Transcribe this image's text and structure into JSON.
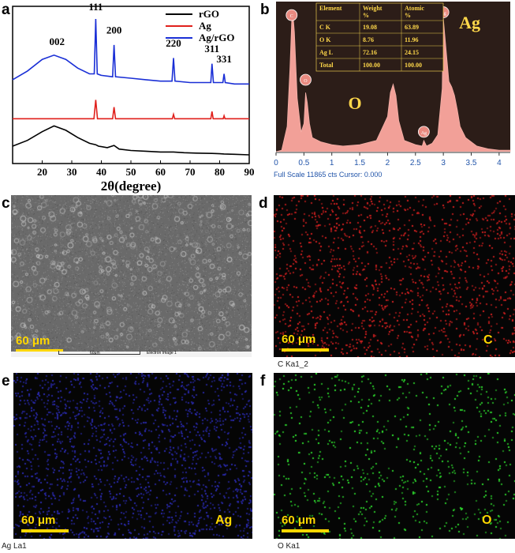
{
  "panels": {
    "a": "a",
    "b": "b",
    "c": "c",
    "d": "d",
    "e": "e",
    "f": "f"
  },
  "chart_data": [
    {
      "type": "line",
      "panel": "a",
      "xlabel": "2θ(degree)",
      "ylabel": "",
      "xlim": [
        10,
        90
      ],
      "xticks": [
        20,
        30,
        40,
        50,
        60,
        70,
        80,
        90
      ],
      "legend_position": "top-right",
      "series": [
        {
          "name": "rGO",
          "color": "#000000",
          "x": [
            10,
            15,
            20,
            24,
            28,
            32,
            36,
            38.1,
            39,
            42,
            44.3,
            46,
            50,
            55,
            60,
            64.4,
            68,
            72,
            77.4,
            80,
            81.5,
            85,
            90
          ],
          "y": [
            0.12,
            0.16,
            0.22,
            0.26,
            0.23,
            0.18,
            0.14,
            0.13,
            0.12,
            0.11,
            0.125,
            0.1,
            0.09,
            0.085,
            0.08,
            0.08,
            0.075,
            0.072,
            0.07,
            0.068,
            0.066,
            0.064,
            0.06
          ]
        },
        {
          "name": "Ag",
          "color": "#e0201c",
          "x": [
            10,
            20,
            30,
            37.5,
            38.1,
            38.7,
            43.8,
            44.3,
            44.8,
            64,
            64.4,
            64.8,
            77,
            77.4,
            77.8,
            81.2,
            81.5,
            81.8,
            90
          ],
          "y": [
            0.31,
            0.31,
            0.31,
            0.31,
            0.44,
            0.31,
            0.31,
            0.39,
            0.31,
            0.31,
            0.34,
            0.31,
            0.31,
            0.36,
            0.31,
            0.31,
            0.33,
            0.31,
            0.31
          ]
        },
        {
          "name": "Ag/rGO",
          "color": "#1a2fd6",
          "x": [
            10,
            15,
            20,
            24,
            28,
            32,
            36,
            37.6,
            38.1,
            38.6,
            40,
            43.8,
            44.3,
            44.8,
            50,
            55,
            60,
            63.9,
            64.4,
            64.9,
            70,
            77,
            77.4,
            77.9,
            81.1,
            81.5,
            81.9,
            85,
            90
          ],
          "y": [
            0.58,
            0.64,
            0.72,
            0.75,
            0.72,
            0.66,
            0.62,
            0.62,
            1.0,
            0.62,
            0.61,
            0.6,
            0.82,
            0.6,
            0.59,
            0.58,
            0.57,
            0.57,
            0.73,
            0.57,
            0.56,
            0.56,
            0.69,
            0.56,
            0.56,
            0.62,
            0.56,
            0.55,
            0.55
          ]
        }
      ],
      "annotations": [
        {
          "text": "002",
          "x": 25,
          "y": 0.82
        },
        {
          "text": "111",
          "x": 38.1,
          "y": 1.06
        },
        {
          "text": "200",
          "x": 44.3,
          "y": 0.9
        },
        {
          "text": "220",
          "x": 64.4,
          "y": 0.81
        },
        {
          "text": "311",
          "x": 77.4,
          "y": 0.77
        },
        {
          "text": "331",
          "x": 81.5,
          "y": 0.7
        }
      ]
    },
    {
      "type": "area",
      "panel": "b",
      "xlim": [
        0,
        4.2
      ],
      "xticks": [
        "0",
        "0.5",
        "1",
        "1.5",
        "2",
        "2.5",
        "3",
        "3.5",
        "4"
      ],
      "footer": "Full Scale 11865 cts Cursor: 0.000",
      "x": [
        0,
        0.1,
        0.2,
        0.25,
        0.28,
        0.3,
        0.33,
        0.38,
        0.45,
        0.5,
        0.53,
        0.56,
        0.6,
        0.65,
        0.8,
        1.0,
        1.2,
        1.5,
        1.8,
        2.0,
        2.05,
        2.1,
        2.15,
        2.2,
        2.3,
        2.5,
        2.62,
        2.65,
        2.7,
        2.8,
        2.9,
        2.98,
        3.0,
        3.05,
        3.1,
        3.15,
        3.2,
        3.25,
        3.3,
        3.4,
        3.6,
        3.8,
        4.0,
        4.2
      ],
      "y": [
        0,
        0.01,
        0.18,
        0.6,
        0.92,
        1.0,
        0.85,
        0.38,
        0.14,
        0.2,
        0.42,
        0.35,
        0.2,
        0.1,
        0.07,
        0.05,
        0.04,
        0.05,
        0.08,
        0.25,
        0.42,
        0.48,
        0.4,
        0.22,
        0.08,
        0.05,
        0.04,
        0.08,
        0.04,
        0.06,
        0.12,
        0.45,
        0.95,
        0.72,
        0.5,
        0.46,
        0.4,
        0.3,
        0.18,
        0.1,
        0.04,
        0.02,
        0.01,
        0.01
      ],
      "peak_labels": [
        {
          "text": "C",
          "x": 0.28
        },
        {
          "text": "O",
          "x": 0.53
        },
        {
          "text": "Ag",
          "x": 3.0
        }
      ],
      "peak_markers": [
        "C",
        "O",
        "Ag",
        "Ag"
      ],
      "table": {
        "headers": [
          "Element",
          "Weight %",
          "Atomic %"
        ],
        "rows": [
          [
            "C K",
            "19.08",
            "63.89"
          ],
          [
            "O K",
            "8.76",
            "11.96"
          ],
          [
            "Ag L",
            "72.16",
            "24.15"
          ],
          [
            "Total",
            "100.00",
            "100.00"
          ]
        ]
      }
    }
  ],
  "images": {
    "c": {
      "scale": "60 μm",
      "footer_scale": "60μm",
      "footer_label": "Electron Image 1"
    },
    "d": {
      "scale": "60 μm",
      "element": "C",
      "caption": "C Ka1_2",
      "dot_color": "#d42020"
    },
    "e": {
      "scale": "60 μm",
      "element": "Ag",
      "caption": "Ag La1",
      "dot_color": "#2a2ab0"
    },
    "f": {
      "scale": "60 μm",
      "element": "O",
      "caption": "O Ka1",
      "dot_color": "#2ee02e"
    }
  }
}
